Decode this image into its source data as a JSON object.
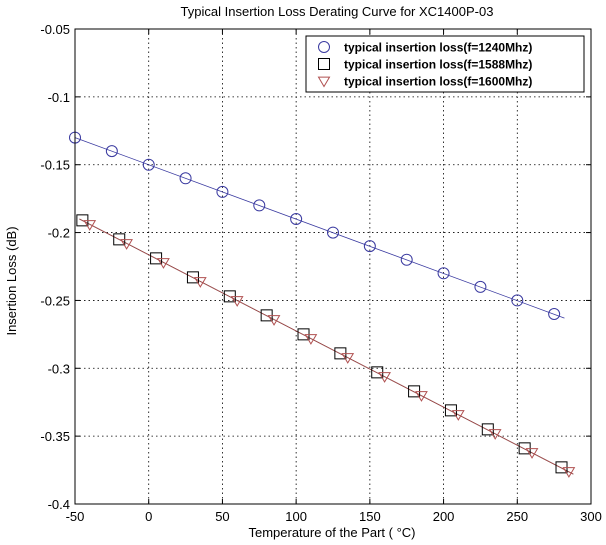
{
  "chart_data": {
    "type": "line",
    "title": "Typical Insertion Loss Derating Curve for XC1400P-03",
    "xlabel": "Temperature of the Part ( °C)",
    "ylabel": "Insertion Loss (dB)",
    "xlim": [
      -50,
      300
    ],
    "ylim": [
      -0.4,
      -0.05
    ],
    "xticks": [
      -50,
      0,
      50,
      100,
      150,
      200,
      250,
      300
    ],
    "xtick_labels": [
      "-50",
      "0",
      "50",
      "100",
      "150",
      "200",
      "250",
      "300"
    ],
    "yticks": [
      -0.05,
      -0.1,
      -0.15,
      -0.2,
      -0.25,
      -0.3,
      -0.35,
      -0.4
    ],
    "ytick_labels": [
      "-0.05",
      "-0.1",
      "-0.15",
      "-0.2",
      "-0.25",
      "-0.3",
      "-0.35",
      "-0.4"
    ],
    "grid": true,
    "legend_position": "top-right",
    "series": [
      {
        "name": "typical insertion loss(f=1240Mhz)",
        "marker": "circle",
        "color": "#3a3aa0",
        "line_x": [
          -50,
          282
        ],
        "line_y": [
          -0.13,
          -0.263
        ],
        "x": [
          -50,
          -25,
          0,
          25,
          50,
          75,
          100,
          125,
          150,
          175,
          200,
          225,
          250,
          275
        ],
        "y": [
          -0.13,
          -0.14,
          -0.15,
          -0.16,
          -0.17,
          -0.18,
          -0.19,
          -0.2,
          -0.21,
          -0.22,
          -0.23,
          -0.24,
          -0.25,
          -0.26
        ]
      },
      {
        "name": "typical insertion loss(f=1588Mhz)",
        "marker": "square",
        "color": "#000000",
        "line_x": [
          -47,
          288
        ],
        "line_y": [
          -0.19,
          -0.378
        ],
        "x": [
          -45,
          -20,
          5,
          30,
          55,
          80,
          105,
          130,
          155,
          180,
          205,
          230,
          255,
          280
        ],
        "y": [
          -0.191,
          -0.205,
          -0.219,
          -0.233,
          -0.247,
          -0.261,
          -0.275,
          -0.289,
          -0.303,
          -0.317,
          -0.331,
          -0.345,
          -0.359,
          -0.373
        ]
      },
      {
        "name": "typical insertion loss(f=1600Mhz)",
        "marker": "triangle",
        "color": "#b05050",
        "line_x": [
          -47,
          288
        ],
        "line_y": [
          -0.19,
          -0.378
        ],
        "x": [
          -40,
          -15,
          10,
          35,
          60,
          85,
          110,
          135,
          160,
          185,
          210,
          235,
          260,
          285
        ],
        "y": [
          -0.194,
          -0.208,
          -0.222,
          -0.236,
          -0.25,
          -0.264,
          -0.278,
          -0.292,
          -0.306,
          -0.32,
          -0.334,
          -0.348,
          -0.362,
          -0.376
        ]
      }
    ]
  }
}
